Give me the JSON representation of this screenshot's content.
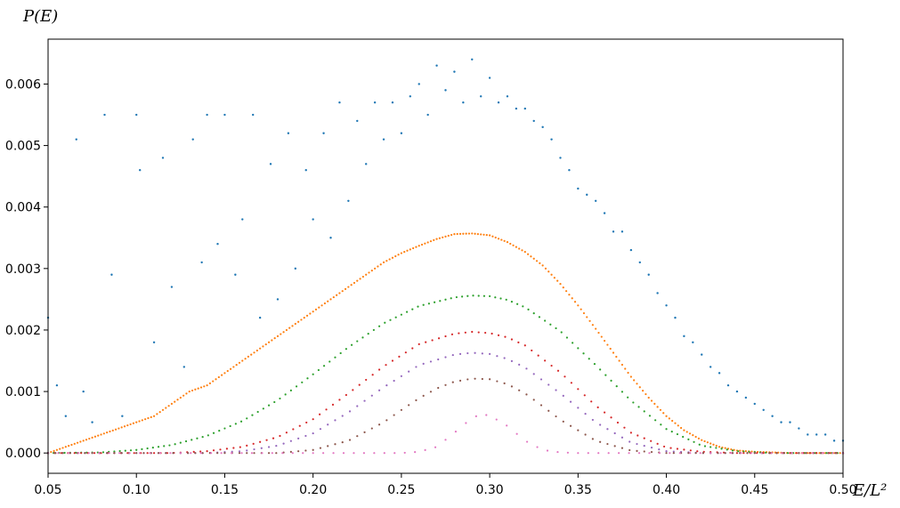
{
  "chart_data": {
    "type": "scatter",
    "title": "",
    "xlabel": "E/L²",
    "ylabel": "P(E)",
    "xlim": [
      0.05,
      0.5
    ],
    "ylim": [
      -0.00033,
      0.00673
    ],
    "xticks": [
      0.05,
      0.1,
      0.15,
      0.2,
      0.25,
      0.3,
      0.35,
      0.4,
      0.45,
      0.5
    ],
    "xtick_labels": [
      "0.05",
      "0.10",
      "0.15",
      "0.20",
      "0.25",
      "0.30",
      "0.35",
      "0.40",
      "0.45",
      "0.50"
    ],
    "yticks": [
      0,
      0.001,
      0.002,
      0.003,
      0.004,
      0.005,
      0.006
    ],
    "ytick_labels": [
      "0.000",
      "0.001",
      "0.002",
      "0.003",
      "0.004",
      "0.005",
      "0.006"
    ],
    "grid": false,
    "legend": "none",
    "marker": "small dots",
    "series": [
      {
        "color": "#1f77b4",
        "x": [
          0.05,
          0.055,
          0.06,
          0.066,
          0.07,
          0.075,
          0.082,
          0.086,
          0.092,
          0.1,
          0.102,
          0.11,
          0.115,
          0.12,
          0.127,
          0.132,
          0.137,
          0.14,
          0.146,
          0.15,
          0.156,
          0.16,
          0.166,
          0.17,
          0.176,
          0.18,
          0.186,
          0.19,
          0.196,
          0.2,
          0.206,
          0.21,
          0.215,
          0.22,
          0.225,
          0.23,
          0.235,
          0.24,
          0.245,
          0.25,
          0.255,
          0.26,
          0.265,
          0.27,
          0.275,
          0.28,
          0.285,
          0.29,
          0.295,
          0.3,
          0.305,
          0.31,
          0.315,
          0.32,
          0.325,
          0.33,
          0.335,
          0.34,
          0.345,
          0.35,
          0.355,
          0.36,
          0.365,
          0.37,
          0.375,
          0.38,
          0.385,
          0.39,
          0.395,
          0.4,
          0.405,
          0.41,
          0.415,
          0.42,
          0.425,
          0.43,
          0.435,
          0.44,
          0.445,
          0.45,
          0.455,
          0.46,
          0.465,
          0.47,
          0.475,
          0.48,
          0.485,
          0.49,
          0.495,
          0.5
        ],
        "y": [
          0.0022,
          0.0011,
          0.0006,
          0.0051,
          0.001,
          0.0005,
          0.0055,
          0.0029,
          0.0006,
          0.0055,
          0.0046,
          0.0018,
          0.0048,
          0.0027,
          0.0014,
          0.0051,
          0.0031,
          0.0055,
          0.0034,
          0.0055,
          0.0029,
          0.0038,
          0.0055,
          0.0022,
          0.0047,
          0.0025,
          0.0052,
          0.003,
          0.0046,
          0.0038,
          0.0052,
          0.0035,
          0.0057,
          0.0041,
          0.0054,
          0.0047,
          0.0057,
          0.0051,
          0.0057,
          0.0052,
          0.0058,
          0.006,
          0.0055,
          0.0063,
          0.0059,
          0.0062,
          0.0057,
          0.0064,
          0.0058,
          0.0061,
          0.0057,
          0.0058,
          0.0056,
          0.0056,
          0.0054,
          0.0053,
          0.0051,
          0.0048,
          0.0046,
          0.0043,
          0.0042,
          0.0041,
          0.0039,
          0.0036,
          0.0036,
          0.0033,
          0.0031,
          0.0029,
          0.0026,
          0.0024,
          0.0022,
          0.0019,
          0.0018,
          0.0016,
          0.0014,
          0.0013,
          0.0011,
          0.001,
          0.0009,
          0.0008,
          0.0007,
          0.0006,
          0.0005,
          0.0005,
          0.0004,
          0.0003,
          0.0003,
          0.0003,
          0.0002,
          0.0002
        ]
      },
      {
        "color": "#ff7f0e",
        "x": [
          0.05,
          0.06,
          0.07,
          0.08,
          0.09,
          0.1,
          0.11,
          0.12,
          0.13,
          0.14,
          0.15,
          0.16,
          0.17,
          0.18,
          0.19,
          0.2,
          0.21,
          0.22,
          0.23,
          0.24,
          0.25,
          0.26,
          0.27,
          0.28,
          0.29,
          0.3,
          0.31,
          0.32,
          0.33,
          0.34,
          0.35,
          0.36,
          0.37,
          0.38,
          0.39,
          0.4,
          0.41,
          0.42,
          0.43,
          0.44,
          0.45,
          0.46,
          0.47,
          0.48,
          0.49,
          0.5
        ],
        "y": [
          0.0,
          0.0001,
          0.0002,
          0.0003,
          0.0004,
          0.0005,
          0.0006,
          0.0008,
          0.001,
          0.0011,
          0.0013,
          0.0015,
          0.0017,
          0.0019,
          0.0021,
          0.0023,
          0.0025,
          0.0027,
          0.0029,
          0.0031,
          0.00325,
          0.00337,
          0.00348,
          0.00356,
          0.00357,
          0.00354,
          0.00343,
          0.00327,
          0.00305,
          0.00275,
          0.0024,
          0.00202,
          0.00163,
          0.00124,
          0.0009,
          0.0006,
          0.00037,
          0.00021,
          0.0001,
          4e-05,
          2e-05,
          1e-05,
          0.0,
          0.0,
          0.0,
          0.0
        ]
      },
      {
        "color": "#2ca02c",
        "x": [
          0.05,
          0.08,
          0.1,
          0.12,
          0.14,
          0.16,
          0.18,
          0.2,
          0.22,
          0.24,
          0.26,
          0.28,
          0.29,
          0.3,
          0.31,
          0.32,
          0.34,
          0.36,
          0.38,
          0.4,
          0.42,
          0.44,
          0.46,
          0.48,
          0.5
        ],
        "y": [
          0.0,
          1e-05,
          5e-05,
          0.00013,
          0.00028,
          0.00052,
          0.00086,
          0.00128,
          0.00172,
          0.00211,
          0.00239,
          0.00253,
          0.00256,
          0.00255,
          0.00249,
          0.00237,
          0.00198,
          0.00143,
          0.00085,
          0.00039,
          0.00012,
          3e-05,
          0.0,
          0.0,
          0.0
        ]
      },
      {
        "color": "#d62728",
        "x": [
          0.05,
          0.12,
          0.14,
          0.16,
          0.18,
          0.2,
          0.22,
          0.24,
          0.26,
          0.28,
          0.29,
          0.3,
          0.31,
          0.32,
          0.34,
          0.36,
          0.38,
          0.4,
          0.42,
          0.44,
          0.5
        ],
        "y": [
          0.0,
          0.0,
          3e-05,
          0.0001,
          0.00026,
          0.00055,
          0.00097,
          0.00141,
          0.00177,
          0.00194,
          0.00197,
          0.00195,
          0.00188,
          0.00175,
          0.00131,
          0.00077,
          0.00033,
          9e-05,
          2e-05,
          0.0,
          0.0
        ]
      },
      {
        "color": "#9467bd",
        "x": [
          0.05,
          0.14,
          0.16,
          0.18,
          0.2,
          0.22,
          0.24,
          0.26,
          0.28,
          0.29,
          0.3,
          0.31,
          0.32,
          0.34,
          0.36,
          0.38,
          0.4,
          0.42,
          0.5
        ],
        "y": [
          0.0,
          0.0,
          3e-05,
          0.00012,
          0.00032,
          0.00066,
          0.00107,
          0.00143,
          0.0016,
          0.00163,
          0.00161,
          0.00153,
          0.00139,
          0.00097,
          0.0005,
          0.00017,
          3e-05,
          0.0,
          0.0
        ]
      },
      {
        "color": "#8c564b",
        "x": [
          0.05,
          0.18,
          0.2,
          0.22,
          0.24,
          0.25,
          0.26,
          0.27,
          0.28,
          0.29,
          0.3,
          0.31,
          0.32,
          0.33,
          0.34,
          0.36,
          0.38,
          0.4,
          0.5
        ],
        "y": [
          0.0,
          0.0,
          5e-05,
          0.0002,
          0.0005,
          0.0007,
          0.00089,
          0.00105,
          0.00116,
          0.00121,
          0.0012,
          0.00112,
          0.00097,
          0.00076,
          0.00054,
          0.0002,
          4e-05,
          0.0,
          0.0
        ]
      },
      {
        "color": "#e377c2",
        "x": [
          0.05,
          0.25,
          0.26,
          0.27,
          0.28,
          0.29,
          0.295,
          0.3,
          0.31,
          0.32,
          0.33,
          0.34,
          0.35,
          0.5
        ],
        "y": [
          0.0,
          0.0,
          2e-05,
          0.0001,
          0.00033,
          0.00057,
          0.00063,
          0.00061,
          0.00044,
          0.0002,
          5e-05,
          1e-05,
          0.0,
          0.0
        ]
      }
    ]
  }
}
